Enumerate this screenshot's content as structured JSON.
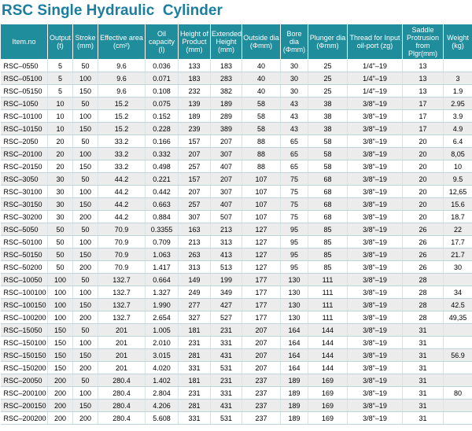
{
  "title": "RSC Single Hydraulic  Cylinder",
  "table": {
    "headers": [
      "Item.no",
      "Output (t)",
      "Stroke (mm)",
      "Effective area (cm²)",
      "Oil capacity (l)",
      "Height of Product (mm)",
      "Extended Height (mm)",
      "Outside dia (Φmm)",
      "Bore dia (Φmm)",
      "Plunger dia (Φmm)",
      "Thread for Input oil-port (zg)",
      "Saddle Protrusion from Plgr(mm)",
      "Weight (kg)"
    ],
    "rows": [
      [
        "RSC–0550",
        "5",
        "50",
        "9.6",
        "0.036",
        "133",
        "183",
        "40",
        "30",
        "25",
        "1/4\"–19",
        "13",
        null
      ],
      [
        "RSC–05100",
        "5",
        "100",
        "9.6",
        "0.071",
        "183",
        "283",
        "40",
        "30",
        "25",
        "1/4\"–19",
        "13",
        "3"
      ],
      [
        "RSC–05150",
        "5",
        "150",
        "9.6",
        "0.108",
        "232",
        "382",
        "40",
        "30",
        "25",
        "1/4\"–19",
        "13",
        "1.9"
      ],
      [
        "RSC–1050",
        "10",
        "50",
        "15.2",
        "0.075",
        "139",
        "189",
        "58",
        "43",
        "38",
        "3/8\"–19",
        "17",
        "2.95"
      ],
      [
        "RSC–10100",
        "10",
        "100",
        "15.2",
        "0.152",
        "189",
        "289",
        "58",
        "43",
        "38",
        "3/8\"–19",
        "17",
        "3.9"
      ],
      [
        "RSC–10150",
        "10",
        "150",
        "15.2",
        "0.228",
        "239",
        "389",
        "58",
        "43",
        "38",
        "3/8\"–19",
        "17",
        "4.9"
      ],
      [
        "RSC–2050",
        "20",
        "50",
        "33.2",
        "0.166",
        "157",
        "207",
        "88",
        "65",
        "58",
        "3/8\"–19",
        "20",
        "6.4"
      ],
      [
        "RSC–20100",
        "20",
        "100",
        "33.2",
        "0.332",
        "207",
        "307",
        "88",
        "65",
        "58",
        "3/8\"–19",
        "20",
        "8,05"
      ],
      [
        "RSC–20150",
        "20",
        "150",
        "33.2",
        "0.498",
        "257",
        "407",
        "88",
        "65",
        "58",
        "3/8\"–19",
        "20",
        "10"
      ],
      [
        "RSC–3050",
        "30",
        "50",
        "44.2",
        "0.221",
        "157",
        "207",
        "107",
        "75",
        "68",
        "3/8\"–19",
        "20",
        "9.5"
      ],
      [
        "RSC–30100",
        "30",
        "100",
        "44.2",
        "0.442",
        "207",
        "307",
        "107",
        "75",
        "68",
        "3/8\"–19",
        "20",
        "12,65"
      ],
      [
        "RSC–30150",
        "30",
        "150",
        "44.2",
        "0.663",
        "257",
        "407",
        "107",
        "75",
        "68",
        "3/8\"–19",
        "20",
        "15.6"
      ],
      [
        "RSC–30200",
        "30",
        "200",
        "44.2",
        "0.884",
        "307",
        "507",
        "107",
        "75",
        "68",
        "3/8\"–19",
        "20",
        "18.7"
      ],
      [
        "RSC–5050",
        "50",
        "50",
        "70.9",
        "0.3355",
        "163",
        "213",
        "127",
        "95",
        "85",
        "3/8\"–19",
        "26",
        "22"
      ],
      [
        "RSC–50100",
        "50",
        "100",
        "70.9",
        "0.709",
        "213",
        "313",
        "127",
        "95",
        "85",
        "3/8\"–19",
        "26",
        "17.7"
      ],
      [
        "RSC–50150",
        "50",
        "150",
        "70.9",
        "1.063",
        "263",
        "413",
        "127",
        "95",
        "85",
        "3/8\"–19",
        "26",
        "21.7"
      ],
      [
        "RSC–50200",
        "50",
        "200",
        "70.9",
        "1.417",
        "313",
        "513",
        "127",
        "95",
        "85",
        "3/8\"–19",
        "26",
        "30"
      ],
      [
        "RSC–10050",
        "100",
        "50",
        "132.7",
        "0.664",
        "149",
        "199",
        "177",
        "130",
        "111",
        "3/8\"–19",
        "28",
        null
      ],
      [
        "RSC–100100",
        "100",
        "100",
        "132.7",
        "1.327",
        "249",
        "349",
        "177",
        "130",
        "111",
        "3/8\"–19",
        "28",
        "34"
      ],
      [
        "RSC–100150",
        "100",
        "150",
        "132.7",
        "1.990",
        "277",
        "427",
        "177",
        "130",
        "111",
        "3/8\"–19",
        "28",
        "42.5"
      ],
      [
        "RSC–100200",
        "100",
        "200",
        "132.7",
        "2.654",
        "327",
        "527",
        "177",
        "130",
        "111",
        "3/8\"–19",
        "28",
        "49,35"
      ],
      [
        "RSC–15050",
        "150",
        "50",
        "201",
        "1.005",
        "181",
        "231",
        "207",
        "164",
        "144",
        "3/8\"–19",
        "31",
        null
      ],
      [
        "RSC–150100",
        "150",
        "100",
        "201",
        "2.010",
        "231",
        "331",
        "207",
        "164",
        "144",
        "3/8\"–19",
        "31",
        null
      ],
      [
        "RSC–150150",
        "150",
        "150",
        "201",
        "3.015",
        "281",
        "431",
        "207",
        "164",
        "144",
        "3/8\"–19",
        "31",
        "56.9"
      ],
      [
        "RSC–150200",
        "150",
        "200",
        "201",
        "4.020",
        "331",
        "531",
        "207",
        "164",
        "144",
        "3/8\"–19",
        "31",
        null
      ],
      [
        "RSC–20050",
        "200",
        "50",
        "280.4",
        "1.402",
        "181",
        "231",
        "237",
        "189",
        "169",
        "3/8\"–19",
        "31",
        null
      ],
      [
        "RSC–200100",
        "200",
        "100",
        "280.4",
        "2.804",
        "231",
        "331",
        "237",
        "189",
        "169",
        "3/8\"–19",
        "31",
        "80"
      ],
      [
        "RSC–200150",
        "200",
        "150",
        "280.4",
        "4.206",
        "281",
        "431",
        "237",
        "189",
        "169",
        "3/8\"–19",
        "31",
        null
      ],
      [
        "RSC–200200",
        "200",
        "200",
        "280.4",
        "5.608",
        "331",
        "531",
        "237",
        "189",
        "169",
        "3/8\"–19",
        "31",
        null
      ]
    ]
  }
}
